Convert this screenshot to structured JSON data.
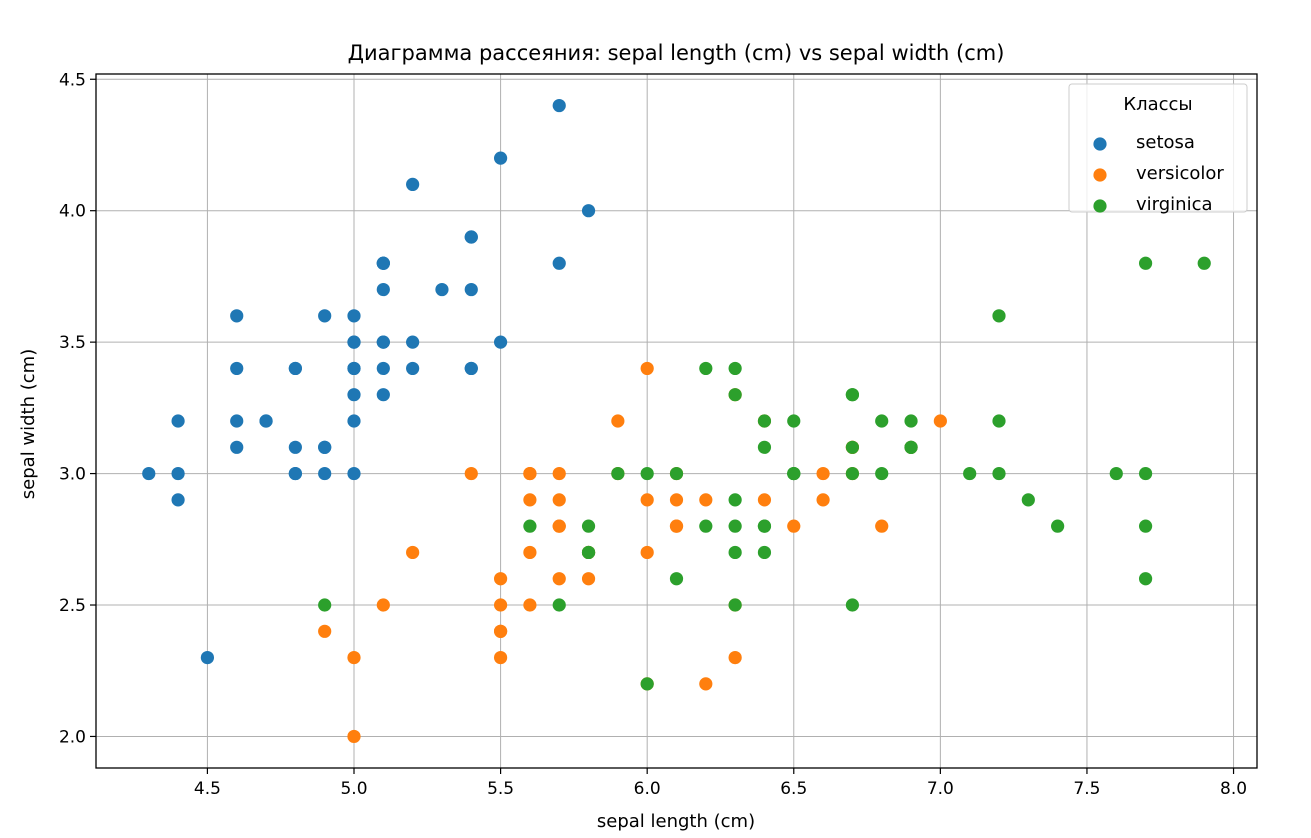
{
  "chart_data": {
    "type": "scatter",
    "title": "Диаграмма рассеяния: sepal length (cm) vs sepal width (cm)",
    "xlabel": "sepal length (cm)",
    "ylabel": "sepal width (cm)",
    "xlim": [
      4.12,
      8.08
    ],
    "ylim": [
      1.88,
      4.52
    ],
    "xticks": [
      4.5,
      5.0,
      5.5,
      6.0,
      6.5,
      7.0,
      7.5,
      8.0
    ],
    "xtick_labels": [
      "4.5",
      "5.0",
      "5.5",
      "6.0",
      "6.5",
      "7.0",
      "7.5",
      "8.0"
    ],
    "yticks": [
      2.0,
      2.5,
      3.0,
      3.5,
      4.0,
      4.5
    ],
    "ytick_labels": [
      "2.0",
      "2.5",
      "3.0",
      "3.5",
      "4.0",
      "4.5"
    ],
    "grid": true,
    "legend": {
      "title": "Классы",
      "placement": "top-right"
    },
    "series": [
      {
        "name": "setosa",
        "color": "#1f77b4",
        "points": [
          [
            5.1,
            3.5
          ],
          [
            4.9,
            3.0
          ],
          [
            4.7,
            3.2
          ],
          [
            4.6,
            3.1
          ],
          [
            5.0,
            3.6
          ],
          [
            5.4,
            3.9
          ],
          [
            4.6,
            3.4
          ],
          [
            5.0,
            3.4
          ],
          [
            4.4,
            2.9
          ],
          [
            4.9,
            3.1
          ],
          [
            5.4,
            3.7
          ],
          [
            4.8,
            3.4
          ],
          [
            4.8,
            3.0
          ],
          [
            4.3,
            3.0
          ],
          [
            5.8,
            4.0
          ],
          [
            5.7,
            4.4
          ],
          [
            5.4,
            3.9
          ],
          [
            5.1,
            3.5
          ],
          [
            5.7,
            3.8
          ],
          [
            5.1,
            3.8
          ],
          [
            5.4,
            3.4
          ],
          [
            5.1,
            3.7
          ],
          [
            4.6,
            3.6
          ],
          [
            5.1,
            3.3
          ],
          [
            4.8,
            3.4
          ],
          [
            5.0,
            3.0
          ],
          [
            5.0,
            3.4
          ],
          [
            5.2,
            3.5
          ],
          [
            5.2,
            3.4
          ],
          [
            4.7,
            3.2
          ],
          [
            4.8,
            3.1
          ],
          [
            5.4,
            3.4
          ],
          [
            5.2,
            4.1
          ],
          [
            5.5,
            4.2
          ],
          [
            4.9,
            3.1
          ],
          [
            5.0,
            3.2
          ],
          [
            5.5,
            3.5
          ],
          [
            4.9,
            3.6
          ],
          [
            4.4,
            3.0
          ],
          [
            5.1,
            3.4
          ],
          [
            5.0,
            3.5
          ],
          [
            4.5,
            2.3
          ],
          [
            4.4,
            3.2
          ],
          [
            5.0,
            3.5
          ],
          [
            5.1,
            3.8
          ],
          [
            4.8,
            3.0
          ],
          [
            5.1,
            3.8
          ],
          [
            4.6,
            3.2
          ],
          [
            5.3,
            3.7
          ],
          [
            5.0,
            3.3
          ]
        ]
      },
      {
        "name": "versicolor",
        "color": "#ff7f0e",
        "points": [
          [
            7.0,
            3.2
          ],
          [
            6.4,
            3.2
          ],
          [
            6.9,
            3.1
          ],
          [
            5.5,
            2.3
          ],
          [
            6.5,
            2.8
          ],
          [
            5.7,
            2.8
          ],
          [
            6.3,
            3.3
          ],
          [
            4.9,
            2.4
          ],
          [
            6.6,
            2.9
          ],
          [
            5.2,
            2.7
          ],
          [
            5.0,
            2.0
          ],
          [
            5.9,
            3.0
          ],
          [
            6.0,
            2.2
          ],
          [
            6.1,
            2.9
          ],
          [
            5.6,
            2.9
          ],
          [
            6.7,
            3.1
          ],
          [
            5.6,
            3.0
          ],
          [
            5.8,
            2.7
          ],
          [
            6.2,
            2.2
          ],
          [
            5.6,
            2.5
          ],
          [
            5.9,
            3.2
          ],
          [
            6.1,
            2.8
          ],
          [
            6.3,
            2.5
          ],
          [
            6.1,
            2.8
          ],
          [
            6.4,
            2.9
          ],
          [
            6.6,
            3.0
          ],
          [
            6.8,
            2.8
          ],
          [
            6.7,
            3.0
          ],
          [
            6.0,
            2.9
          ],
          [
            5.7,
            2.6
          ],
          [
            5.5,
            2.4
          ],
          [
            5.5,
            2.4
          ],
          [
            5.8,
            2.7
          ],
          [
            6.0,
            2.7
          ],
          [
            5.4,
            3.0
          ],
          [
            6.0,
            3.4
          ],
          [
            6.7,
            3.1
          ],
          [
            6.3,
            2.3
          ],
          [
            5.6,
            3.0
          ],
          [
            5.5,
            2.5
          ],
          [
            5.5,
            2.6
          ],
          [
            6.1,
            3.0
          ],
          [
            5.8,
            2.6
          ],
          [
            5.0,
            2.3
          ],
          [
            5.6,
            2.7
          ],
          [
            5.7,
            3.0
          ],
          [
            5.7,
            2.9
          ],
          [
            6.2,
            2.9
          ],
          [
            5.1,
            2.5
          ],
          [
            5.7,
            2.8
          ]
        ]
      },
      {
        "name": "virginica",
        "color": "#2ca02c",
        "points": [
          [
            6.3,
            3.3
          ],
          [
            5.8,
            2.7
          ],
          [
            7.1,
            3.0
          ],
          [
            6.3,
            2.9
          ],
          [
            6.5,
            3.0
          ],
          [
            7.6,
            3.0
          ],
          [
            4.9,
            2.5
          ],
          [
            7.3,
            2.9
          ],
          [
            6.7,
            2.5
          ],
          [
            7.2,
            3.6
          ],
          [
            6.5,
            3.2
          ],
          [
            6.4,
            2.7
          ],
          [
            6.8,
            3.0
          ],
          [
            5.7,
            2.5
          ],
          [
            5.8,
            2.8
          ],
          [
            6.4,
            3.2
          ],
          [
            6.5,
            3.0
          ],
          [
            7.7,
            3.8
          ],
          [
            7.7,
            2.6
          ],
          [
            6.0,
            2.2
          ],
          [
            6.9,
            3.2
          ],
          [
            5.6,
            2.8
          ],
          [
            7.7,
            2.8
          ],
          [
            6.3,
            2.7
          ],
          [
            6.7,
            3.3
          ],
          [
            7.2,
            3.2
          ],
          [
            6.2,
            2.8
          ],
          [
            6.1,
            3.0
          ],
          [
            6.4,
            2.8
          ],
          [
            7.2,
            3.0
          ],
          [
            7.4,
            2.8
          ],
          [
            7.9,
            3.8
          ],
          [
            6.4,
            2.8
          ],
          [
            6.3,
            2.8
          ],
          [
            6.1,
            2.6
          ],
          [
            7.7,
            3.0
          ],
          [
            6.3,
            3.4
          ],
          [
            6.4,
            3.1
          ],
          [
            6.0,
            3.0
          ],
          [
            6.9,
            3.1
          ],
          [
            6.7,
            3.1
          ],
          [
            6.9,
            3.1
          ],
          [
            5.8,
            2.7
          ],
          [
            6.8,
            3.2
          ],
          [
            6.7,
            3.3
          ],
          [
            6.7,
            3.0
          ],
          [
            6.3,
            2.5
          ],
          [
            6.5,
            3.0
          ],
          [
            6.2,
            3.4
          ],
          [
            5.9,
            3.0
          ]
        ]
      }
    ]
  }
}
